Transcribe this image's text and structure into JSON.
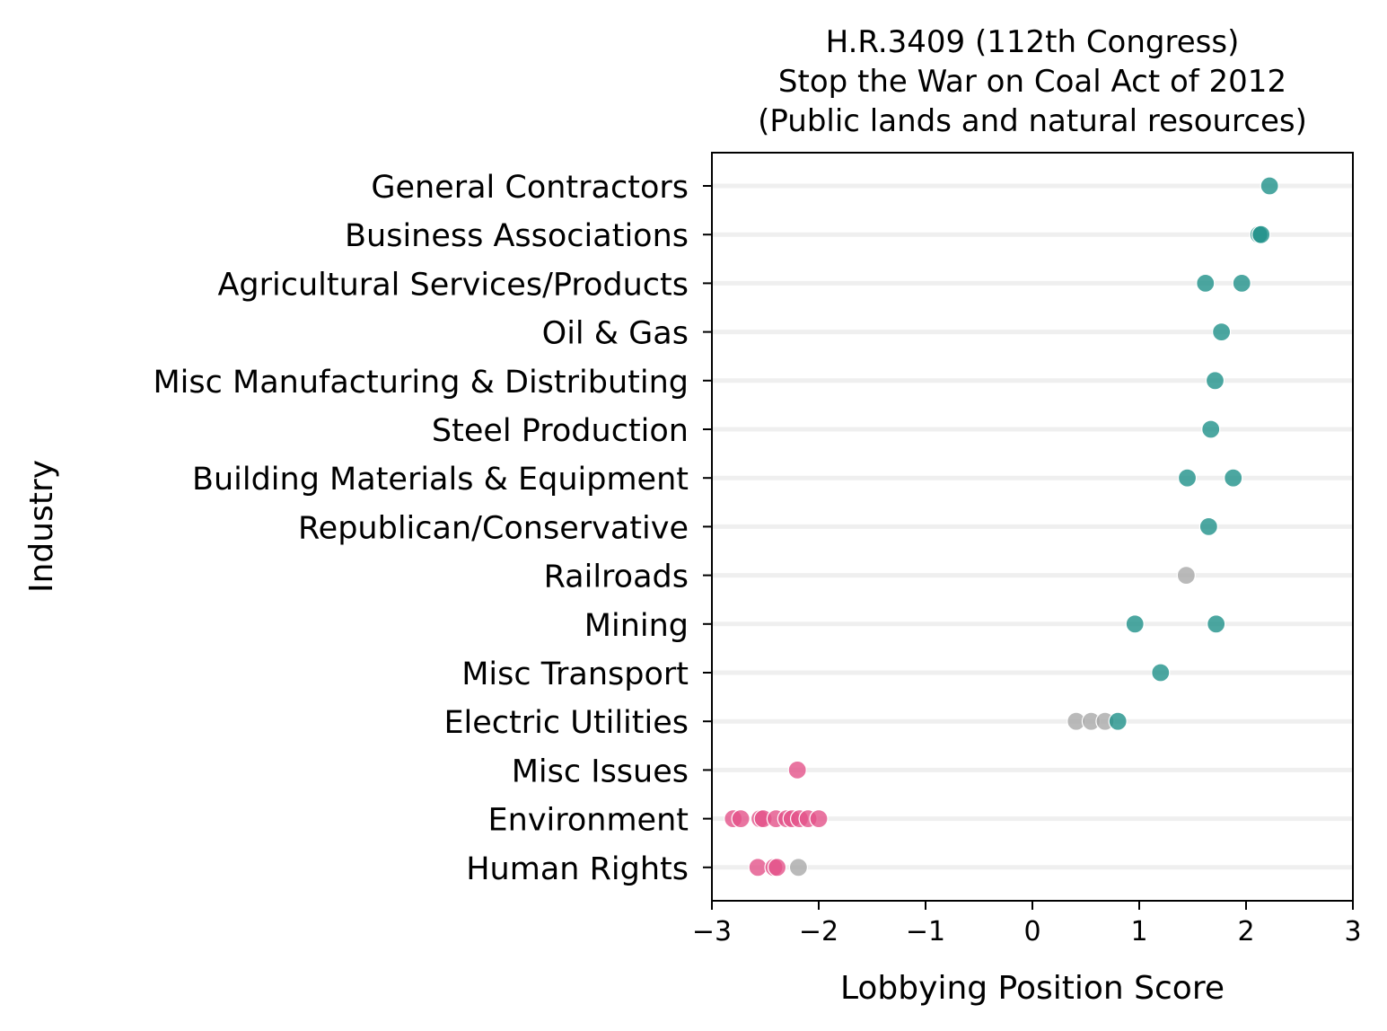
{
  "chart_data": {
    "type": "scatter",
    "title_lines": [
      "H.R.3409 (112th Congress)",
      "Stop the War on Coal Act of 2012",
      "(Public lands and natural resources)"
    ],
    "xlabel": "Lobbying Position Score",
    "ylabel": "Industry",
    "xlim": [
      -3,
      3
    ],
    "xticks": [
      -3,
      -2,
      -1,
      0,
      1,
      2,
      3
    ],
    "xtick_labels": [
      "−3",
      "−2",
      "−1",
      "0",
      "1",
      "2",
      "3"
    ],
    "grid": "horizontal",
    "categories": [
      "General Contractors",
      "Business Associations",
      "Agricultural Services/Products",
      "Oil & Gas",
      "Misc Manufacturing & Distributing",
      "Steel Production",
      "Building Materials & Equipment",
      "Republican/Conservative",
      "Railroads",
      "Mining",
      "Misc Transport",
      "Electric Utilities",
      "Misc Issues",
      "Environment",
      "Human Rights"
    ],
    "colors": {
      "support": "#1f9189",
      "oppose": "#e3528a",
      "neutral": "#a9a9a9"
    },
    "points": [
      {
        "category": "General Contractors",
        "x": 2.22,
        "stance": "support"
      },
      {
        "category": "Business Associations",
        "x": 2.12,
        "stance": "support"
      },
      {
        "category": "Business Associations",
        "x": 2.14,
        "stance": "support"
      },
      {
        "category": "Agricultural Services/Products",
        "x": 1.62,
        "stance": "support"
      },
      {
        "category": "Agricultural Services/Products",
        "x": 1.96,
        "stance": "support"
      },
      {
        "category": "Oil & Gas",
        "x": 1.77,
        "stance": "support"
      },
      {
        "category": "Misc Manufacturing & Distributing",
        "x": 1.71,
        "stance": "support"
      },
      {
        "category": "Steel Production",
        "x": 1.67,
        "stance": "support"
      },
      {
        "category": "Building Materials & Equipment",
        "x": 1.45,
        "stance": "support"
      },
      {
        "category": "Building Materials & Equipment",
        "x": 1.88,
        "stance": "support"
      },
      {
        "category": "Republican/Conservative",
        "x": 1.65,
        "stance": "support"
      },
      {
        "category": "Railroads",
        "x": 1.44,
        "stance": "neutral"
      },
      {
        "category": "Mining",
        "x": 0.96,
        "stance": "support"
      },
      {
        "category": "Mining",
        "x": 1.72,
        "stance": "support"
      },
      {
        "category": "Misc Transport",
        "x": 1.2,
        "stance": "support"
      },
      {
        "category": "Electric Utilities",
        "x": 0.41,
        "stance": "neutral"
      },
      {
        "category": "Electric Utilities",
        "x": 0.55,
        "stance": "neutral"
      },
      {
        "category": "Electric Utilities",
        "x": 0.68,
        "stance": "neutral"
      },
      {
        "category": "Electric Utilities",
        "x": 0.8,
        "stance": "support"
      },
      {
        "category": "Misc Issues",
        "x": -2.2,
        "stance": "oppose"
      },
      {
        "category": "Environment",
        "x": -2.8,
        "stance": "oppose"
      },
      {
        "category": "Environment",
        "x": -2.73,
        "stance": "oppose"
      },
      {
        "category": "Environment",
        "x": -2.55,
        "stance": "oppose"
      },
      {
        "category": "Environment",
        "x": -2.52,
        "stance": "oppose"
      },
      {
        "category": "Environment",
        "x": -2.4,
        "stance": "oppose"
      },
      {
        "category": "Environment",
        "x": -2.3,
        "stance": "oppose"
      },
      {
        "category": "Environment",
        "x": -2.25,
        "stance": "oppose"
      },
      {
        "category": "Environment",
        "x": -2.18,
        "stance": "oppose"
      },
      {
        "category": "Environment",
        "x": -2.1,
        "stance": "oppose"
      },
      {
        "category": "Environment",
        "x": -2.0,
        "stance": "oppose"
      },
      {
        "category": "Human Rights",
        "x": -2.57,
        "stance": "oppose"
      },
      {
        "category": "Human Rights",
        "x": -2.42,
        "stance": "oppose"
      },
      {
        "category": "Human Rights",
        "x": -2.39,
        "stance": "oppose"
      },
      {
        "category": "Human Rights",
        "x": -2.19,
        "stance": "neutral"
      }
    ]
  }
}
